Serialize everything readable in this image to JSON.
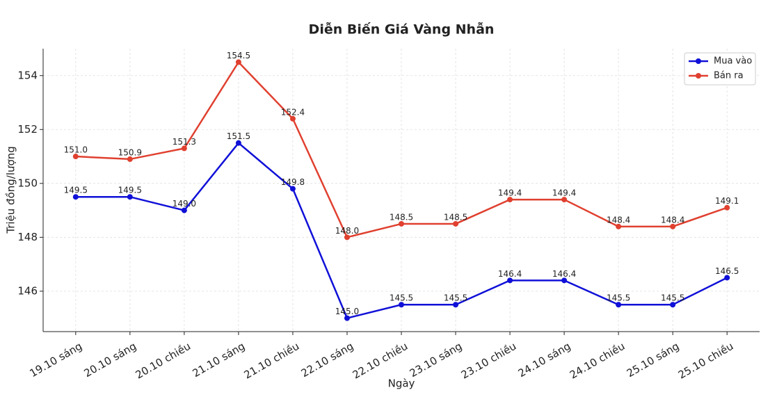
{
  "chart_data": {
    "type": "line",
    "title": "Diễn Biến Giá Vàng Nhẫn",
    "x_label": "Ngày",
    "y_label": "Triệu đồng/lượng",
    "categories": [
      "19.10 sáng",
      "20.10 sáng",
      "20.10 chiều",
      "21.10 sáng",
      "21.10 chiều",
      "22.10 sáng",
      "22.10 chiều",
      "23.10 sáng",
      "23.10 chiều",
      "24.10 sáng",
      "24.10 chiều",
      "25.10 sáng",
      "25.10 chiều"
    ],
    "series": [
      {
        "name": "Mua vào",
        "color": "#1010d8",
        "values": [
          149.5,
          149.5,
          149.0,
          151.5,
          149.8,
          145.0,
          145.5,
          145.5,
          146.4,
          146.4,
          145.5,
          145.5,
          146.5
        ],
        "value_labels": [
          "149.5",
          "149.5",
          "149.0",
          "151.5",
          "149.8",
          "145.0",
          "145.5",
          "145.5",
          "146.4",
          "146.4",
          "145.5",
          "145.5",
          "146.5"
        ]
      },
      {
        "name": "Bán ra",
        "color": "#e0402f",
        "values": [
          151.0,
          150.9,
          151.3,
          154.5,
          152.4,
          148.0,
          148.5,
          148.5,
          149.4,
          149.4,
          148.4,
          148.4,
          149.1
        ],
        "value_labels": [
          "151.0",
          "150.9",
          "151.3",
          "154.5",
          "152.4",
          "148.0",
          "148.5",
          "148.5",
          "149.4",
          "149.4",
          "148.4",
          "148.4",
          "149.1"
        ]
      }
    ],
    "ylim": [
      144.5,
      155
    ],
    "yticks": [
      146,
      148,
      150,
      152,
      154
    ],
    "grid": true,
    "legend": "upper right"
  }
}
